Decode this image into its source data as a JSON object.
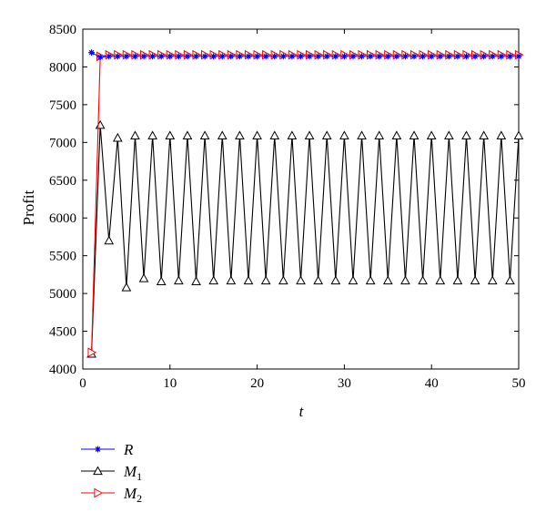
{
  "chart_data": {
    "type": "line",
    "xlabel": "t",
    "ylabel": "Profit",
    "xlim": [
      0,
      50
    ],
    "ylim": [
      4000,
      8500
    ],
    "xticks": [
      0,
      10,
      20,
      30,
      40,
      50
    ],
    "yticks": [
      4000,
      4500,
      5000,
      5500,
      6000,
      6500,
      7000,
      7500,
      8000,
      8500
    ],
    "grid": false,
    "legend_position": "below plot, left",
    "x": [
      1,
      2,
      3,
      4,
      5,
      6,
      7,
      8,
      9,
      10,
      11,
      12,
      13,
      14,
      15,
      16,
      17,
      18,
      19,
      20,
      21,
      22,
      23,
      24,
      25,
      26,
      27,
      28,
      29,
      30,
      31,
      32,
      33,
      34,
      35,
      36,
      37,
      38,
      39,
      40,
      41,
      42,
      43,
      44,
      45,
      46,
      47,
      48,
      49,
      50
    ],
    "series": [
      {
        "name": "R",
        "subscript": "",
        "color": "#0000ff",
        "marker": "asterisk",
        "values": [
          8190,
          8130,
          8140,
          8140,
          8140,
          8140,
          8140,
          8140,
          8140,
          8140,
          8140,
          8140,
          8140,
          8140,
          8140,
          8140,
          8140,
          8140,
          8140,
          8140,
          8140,
          8140,
          8140,
          8140,
          8140,
          8140,
          8140,
          8140,
          8140,
          8140,
          8140,
          8140,
          8140,
          8140,
          8140,
          8140,
          8140,
          8140,
          8140,
          8140,
          8140,
          8140,
          8140,
          8140,
          8140,
          8140,
          8140,
          8140,
          8140,
          8140
        ]
      },
      {
        "name": "M",
        "subscript": "1",
        "color": "#000000",
        "marker": "triangle-up",
        "values": [
          4200,
          7230,
          5700,
          7060,
          5080,
          7090,
          5200,
          7090,
          5160,
          7090,
          5170,
          7090,
          5160,
          7090,
          5170,
          7090,
          5170,
          7090,
          5170,
          7090,
          5170,
          7090,
          5170,
          7090,
          5170,
          7090,
          5170,
          7090,
          5170,
          7090,
          5170,
          7090,
          5170,
          7090,
          5170,
          7090,
          5170,
          7090,
          5170,
          7090,
          5170,
          7090,
          5170,
          7090,
          5170,
          7090,
          5170,
          7090,
          5170,
          7090
        ]
      },
      {
        "name": "M",
        "subscript": "2",
        "color": "#ff0000",
        "marker": "triangle-right",
        "values": [
          4220,
          8140,
          8160,
          8160,
          8160,
          8160,
          8160,
          8160,
          8160,
          8160,
          8160,
          8160,
          8160,
          8160,
          8160,
          8160,
          8160,
          8160,
          8160,
          8160,
          8160,
          8160,
          8160,
          8160,
          8160,
          8160,
          8160,
          8160,
          8160,
          8160,
          8160,
          8160,
          8160,
          8160,
          8160,
          8160,
          8160,
          8160,
          8160,
          8160,
          8160,
          8160,
          8160,
          8160,
          8160,
          8160,
          8160,
          8160,
          8160,
          8160
        ]
      }
    ]
  }
}
